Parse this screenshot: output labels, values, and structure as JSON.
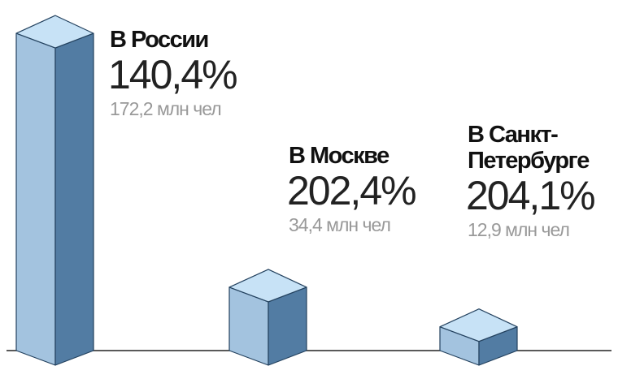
{
  "chart_data": {
    "type": "bar3d",
    "categories": [
      "В России",
      "В Москве",
      "В Санкт-Петербурге"
    ],
    "values": [
      172.2,
      34.4,
      12.9
    ],
    "value_labels": [
      "172,2 млн чел",
      "34,4 млн чел",
      "12,9 млн чел"
    ],
    "percents": [
      140.4,
      202.4,
      204.1
    ],
    "percent_labels": [
      "140,4%",
      "202,4%",
      "204,1%"
    ],
    "colors": {
      "front": "#a3c3df",
      "side": "#527ca3",
      "top": "#c7e2f6",
      "edge": "#23415e"
    }
  }
}
